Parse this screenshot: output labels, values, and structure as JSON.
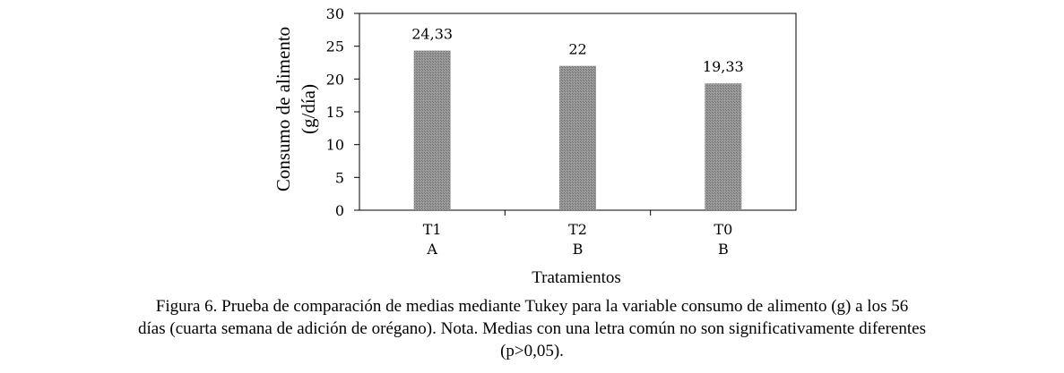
{
  "chart_data": {
    "type": "bar",
    "categories": [
      "T1",
      "T2",
      "T0"
    ],
    "group_letters": [
      "A",
      "B",
      "B"
    ],
    "values": [
      24.33,
      22,
      19.33
    ],
    "data_labels": [
      "24,33",
      "22",
      "19,33"
    ],
    "ylabel_line1": "Consumo de alimento",
    "ylabel_line2": "(g/día)",
    "xlabel": "Tratamientos",
    "ylim": [
      0,
      30
    ],
    "yticks": [
      0,
      5,
      10,
      15,
      20,
      25,
      30
    ],
    "grid": false,
    "bar_color": "#8c8c8c"
  },
  "caption": {
    "line1": "Figura  6. Prueba de comparación de medias mediante Tukey para la variable consumo de alimento (g) a los 56",
    "line2": "días (cuarta semana de adición de orégano). Nota. Medias con una letra común no son significativamente diferentes",
    "line3": "(p>0,05)."
  }
}
